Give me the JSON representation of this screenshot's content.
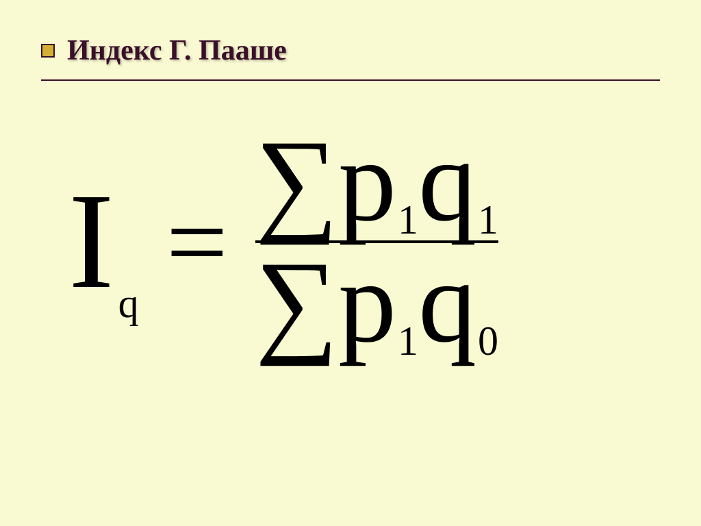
{
  "slide": {
    "title": "Индекс Г. Пааше",
    "title_color": "#3a0f2a",
    "title_fontsize": 42,
    "bullet_fill": "#d4af37",
    "bullet_border": "#3a0f2a",
    "underline_color": "#3a0f2a",
    "background_color": "#fafad2"
  },
  "formula": {
    "lhs_symbol": "I",
    "lhs_subscript": "q",
    "equals": "=",
    "sigma": "∑",
    "numerator": {
      "p_letter": "p",
      "p_sub": "1",
      "q_letter": "q",
      "q_sub": "1"
    },
    "denominator": {
      "p_letter": "p",
      "p_sub": "1",
      "q_letter": "q",
      "q_sub": "0"
    },
    "text_color": "#000000",
    "main_fontsize": 170,
    "lhs_fontsize": 200,
    "subscript_fontsize": 60,
    "fraction_line_color": "#000000"
  }
}
